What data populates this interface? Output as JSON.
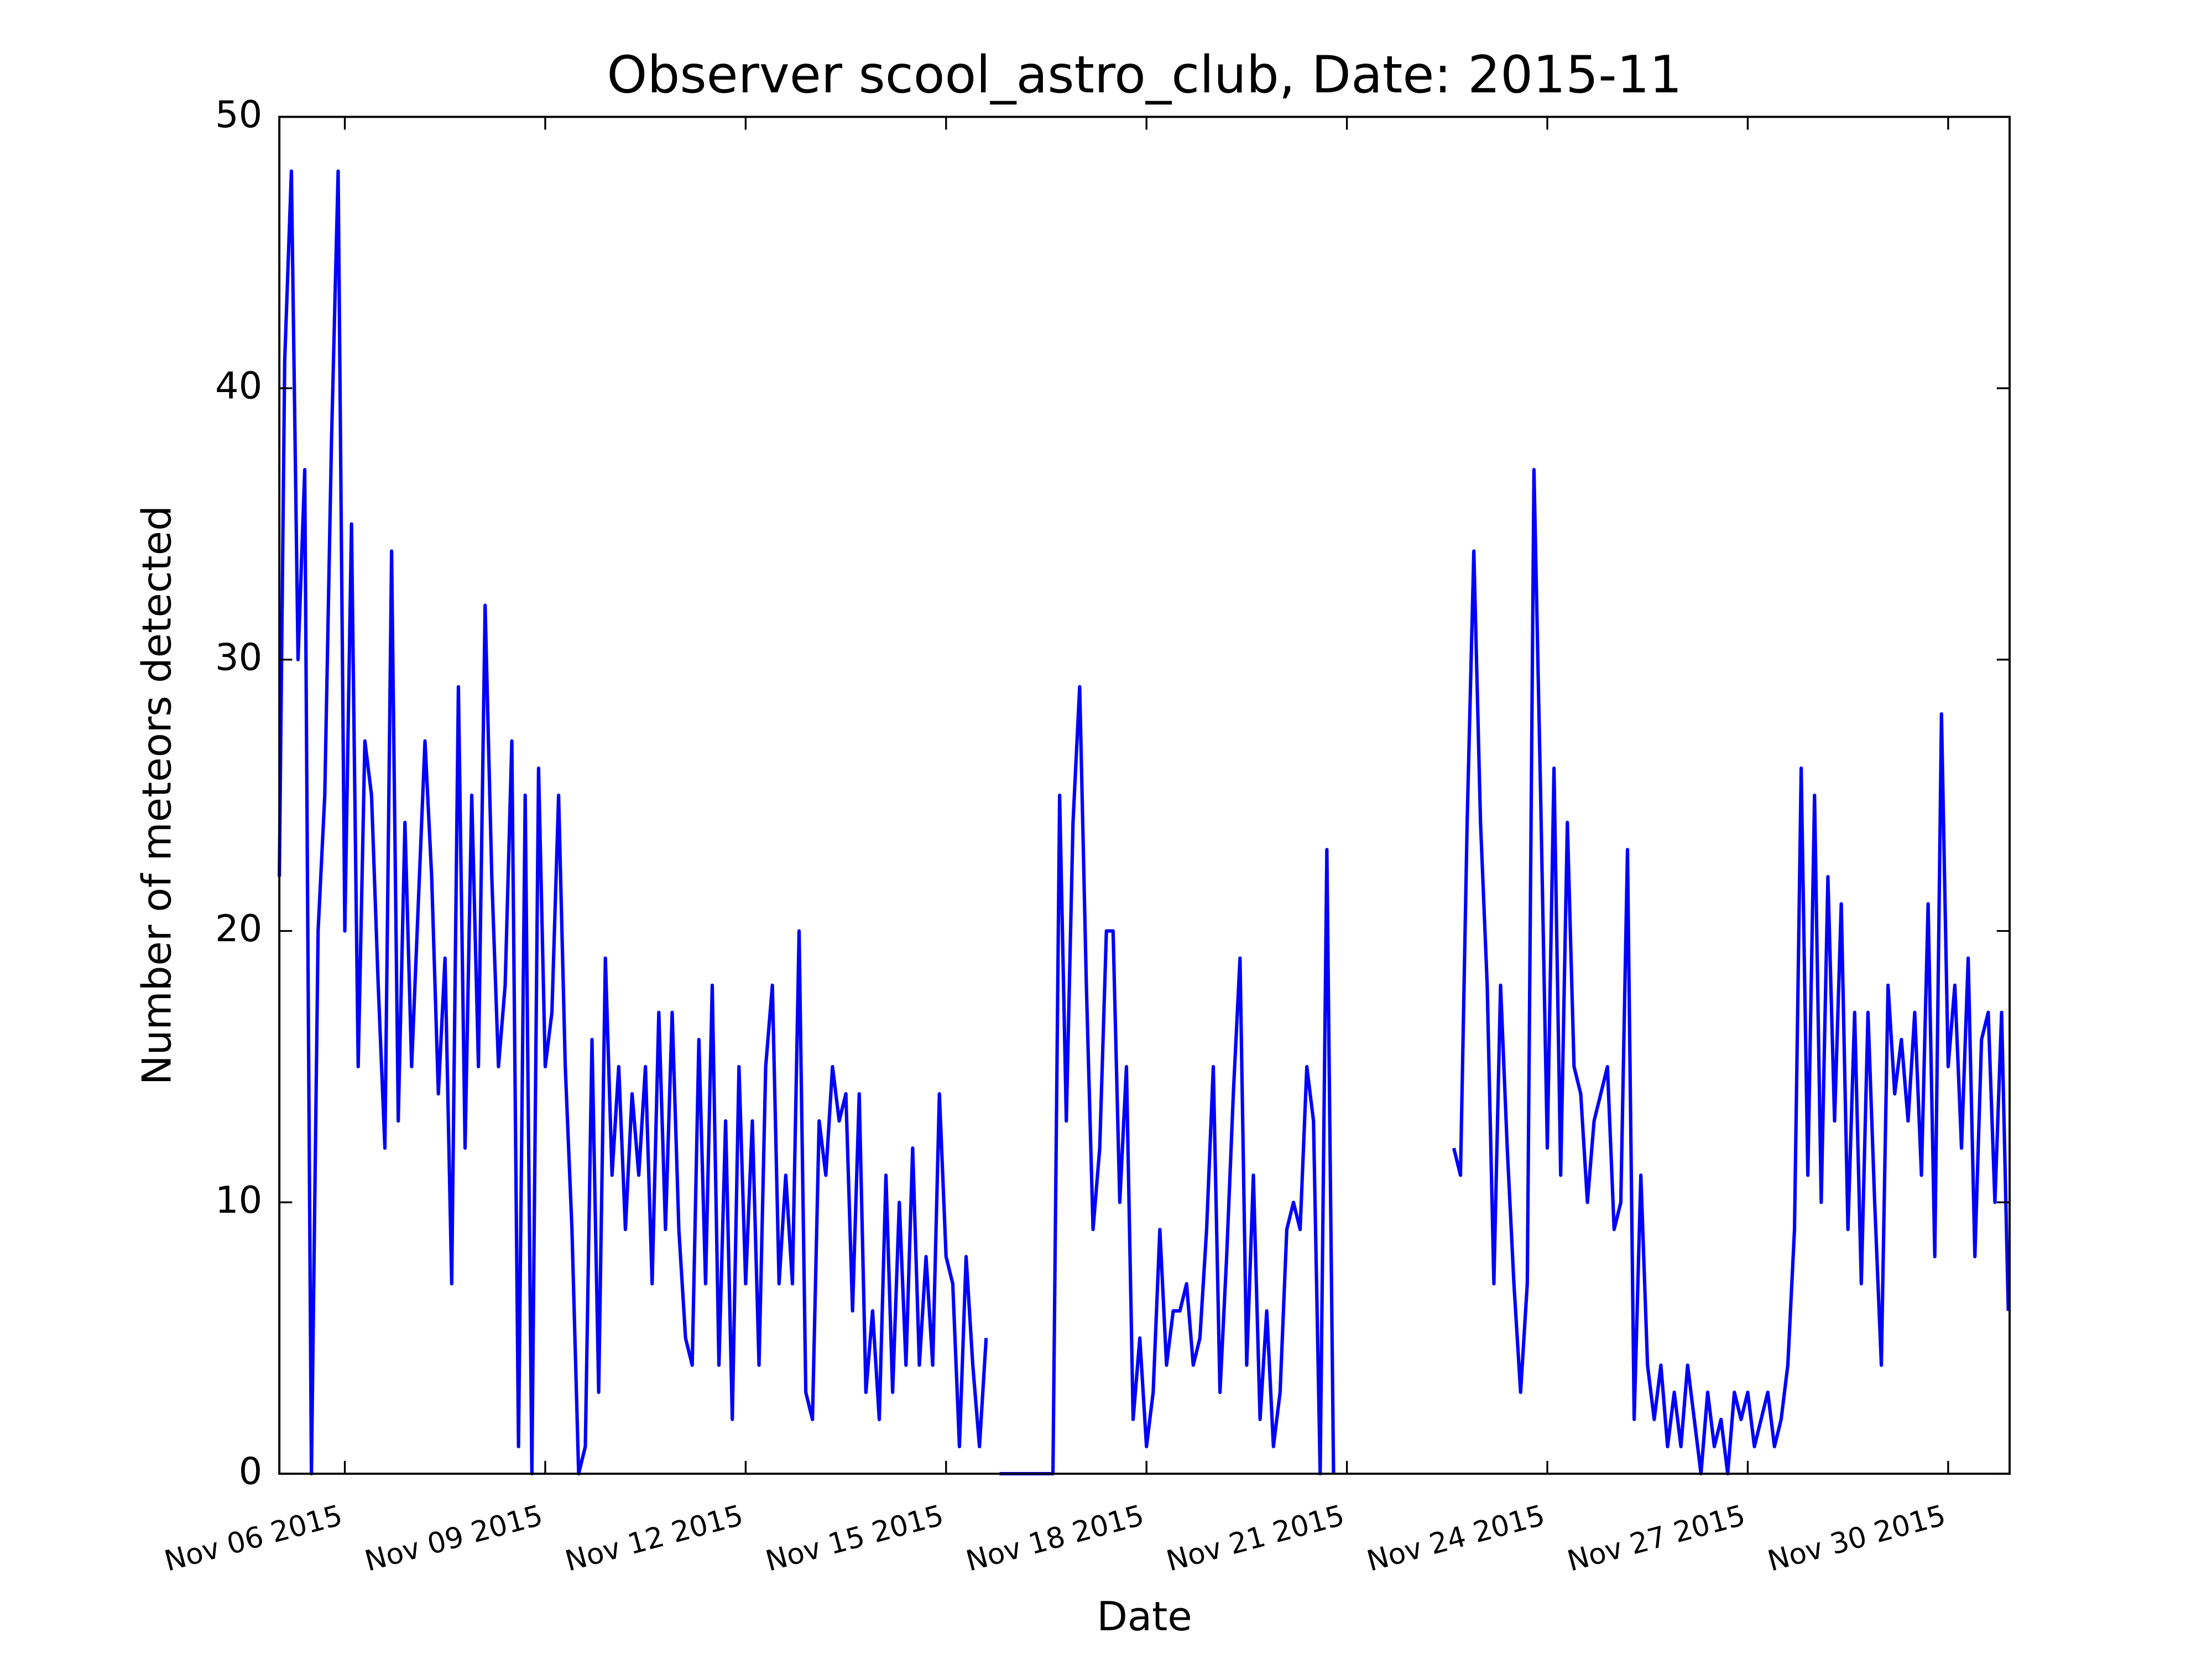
{
  "chart_data": {
    "type": "line",
    "title": "Observer scool_astro_club, Date: 2015-11",
    "x_label": "Date",
    "y_label": "Number of meteors detected",
    "color": "#0000ff",
    "xlim": [
      5.02,
      30.92
    ],
    "ylim": [
      0,
      50
    ],
    "xticks": [
      {
        "value": 6,
        "label": "Nov 06 2015"
      },
      {
        "value": 9,
        "label": "Nov 09 2015"
      },
      {
        "value": 12,
        "label": "Nov 12 2015"
      },
      {
        "value": 15,
        "label": "Nov 15 2015"
      },
      {
        "value": 18,
        "label": "Nov 18 2015"
      },
      {
        "value": 21,
        "label": "Nov 21 2015"
      },
      {
        "value": 24,
        "label": "Nov 24 2015"
      },
      {
        "value": 27,
        "label": "Nov 27 2015"
      },
      {
        "value": 30,
        "label": "Nov 30 2015"
      }
    ],
    "yticks": [
      0,
      10,
      20,
      30,
      40,
      50
    ],
    "x": [
      5.02,
      5.1,
      5.2,
      5.3,
      5.4,
      5.5,
      5.6,
      5.7,
      5.8,
      5.9,
      6.0,
      6.1,
      6.2,
      6.3,
      6.4,
      6.5,
      6.6,
      6.7,
      6.8,
      6.9,
      7.0,
      7.1,
      7.2,
      7.3,
      7.4,
      7.5,
      7.6,
      7.7,
      7.8,
      7.9,
      8.0,
      8.1,
      8.2,
      8.3,
      8.4,
      8.5,
      8.6,
      8.7,
      8.8,
      8.9,
      9.0,
      9.1,
      9.2,
      9.3,
      9.4,
      9.5,
      9.6,
      9.7,
      9.8,
      9.9,
      10.0,
      10.1,
      10.2,
      10.3,
      10.4,
      10.5,
      10.6,
      10.7,
      10.8,
      10.9,
      11.0,
      11.1,
      11.2,
      11.3,
      11.4,
      11.5,
      11.6,
      11.7,
      11.8,
      11.9,
      12.0,
      12.1,
      12.2,
      12.3,
      12.4,
      12.5,
      12.6,
      12.7,
      12.8,
      12.9,
      13.0,
      13.1,
      13.2,
      13.3,
      13.4,
      13.5,
      13.6,
      13.7,
      13.8,
      13.9,
      14.0,
      14.1,
      14.2,
      14.3,
      14.4,
      14.5,
      14.6,
      14.7,
      14.8,
      14.9,
      15.0,
      15.1,
      15.2,
      15.3,
      15.4,
      15.5,
      15.6,
      15.7,
      15.8,
      15.9,
      16.0,
      16.1,
      16.2,
      16.3,
      16.4,
      16.5,
      16.6,
      16.7,
      16.8,
      16.9,
      17.0,
      17.1,
      17.2,
      17.3,
      17.4,
      17.5,
      17.6,
      17.7,
      17.8,
      17.9,
      18.0,
      18.1,
      18.2,
      18.3,
      18.4,
      18.5,
      18.6,
      18.7,
      18.8,
      18.9,
      19.0,
      19.1,
      19.2,
      19.3,
      19.4,
      19.5,
      19.6,
      19.7,
      19.8,
      19.9,
      20.0,
      20.1,
      20.2,
      20.3,
      20.4,
      20.5,
      20.6,
      20.7,
      20.8,
      20.9,
      22.6,
      22.7,
      22.8,
      22.9,
      23.0,
      23.1,
      23.2,
      23.3,
      23.4,
      23.5,
      23.6,
      23.7,
      23.8,
      23.9,
      24.0,
      24.1,
      24.2,
      24.3,
      24.4,
      24.5,
      24.6,
      24.7,
      24.8,
      24.9,
      25.0,
      25.1,
      25.2,
      25.3,
      25.4,
      25.5,
      25.6,
      25.7,
      25.8,
      25.9,
      26.0,
      26.1,
      26.2,
      26.3,
      26.4,
      26.5,
      26.6,
      26.7,
      26.8,
      26.9,
      27.0,
      27.1,
      27.2,
      27.3,
      27.4,
      27.5,
      27.6,
      27.7,
      27.8,
      27.9,
      28.0,
      28.1,
      28.2,
      28.3,
      28.4,
      28.5,
      28.6,
      28.7,
      28.8,
      28.9,
      29.0,
      29.1,
      29.2,
      29.3,
      29.4,
      29.5,
      29.6,
      29.7,
      29.8,
      29.9,
      30.0,
      30.1,
      30.2,
      30.3,
      30.4,
      30.5,
      30.6,
      30.7,
      30.8,
      30.9
    ],
    "values": [
      22,
      41,
      48,
      30,
      37,
      0,
      20,
      25,
      38,
      48,
      20,
      35,
      15,
      27,
      25,
      18,
      12,
      34,
      13,
      24,
      15,
      21,
      27,
      22,
      14,
      19,
      7,
      29,
      12,
      25,
      15,
      32,
      22,
      15,
      18,
      27,
      1,
      25,
      0,
      26,
      15,
      17,
      25,
      15,
      9,
      0,
      1,
      16,
      3,
      19,
      11,
      15,
      9,
      14,
      11,
      15,
      7,
      17,
      9,
      17,
      9,
      5,
      4,
      16,
      7,
      18,
      4,
      13,
      2,
      15,
      7,
      13,
      4,
      15,
      18,
      7,
      11,
      7,
      20,
      3,
      2,
      13,
      11,
      15,
      13,
      14,
      6,
      14,
      3,
      6,
      2,
      11,
      3,
      10,
      4,
      12,
      4,
      8,
      4,
      14,
      8,
      7,
      1,
      8,
      4,
      1,
      5,
      null,
      0,
      0,
      0,
      0,
      0,
      0,
      0,
      0,
      0,
      25,
      13,
      24,
      29,
      18,
      9,
      12,
      20,
      20,
      10,
      15,
      2,
      5,
      1,
      3,
      9,
      4,
      6,
      6,
      7,
      4,
      5,
      9,
      15,
      3,
      8,
      14,
      19,
      4,
      11,
      2,
      6,
      1,
      3,
      9,
      10,
      9,
      15,
      13,
      0,
      23,
      0,
      null,
      12,
      11,
      24,
      34,
      24,
      18,
      7,
      18,
      12,
      7,
      3,
      7,
      37,
      25,
      12,
      26,
      11,
      24,
      15,
      14,
      10,
      13,
      14,
      15,
      9,
      10,
      23,
      2,
      11,
      4,
      2,
      4,
      1,
      3,
      1,
      4,
      2,
      0,
      3,
      1,
      2,
      0,
      3,
      2,
      3,
      1,
      2,
      3,
      1,
      2,
      4,
      9,
      26,
      11,
      25,
      10,
      22,
      13,
      21,
      9,
      17,
      7,
      17,
      10,
      4,
      18,
      14,
      16,
      13,
      17,
      11,
      21,
      8,
      28,
      15,
      18,
      12,
      19,
      8,
      16,
      17,
      10,
      17,
      6
    ]
  }
}
